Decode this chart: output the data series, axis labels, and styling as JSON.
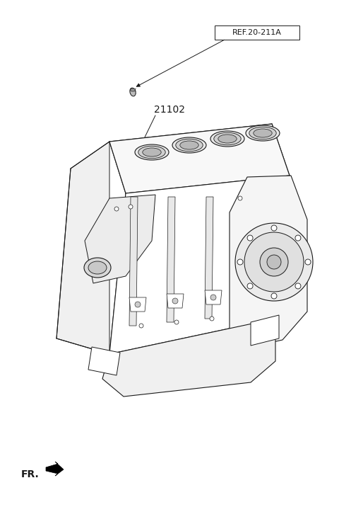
{
  "background_color": "#ffffff",
  "line_color": "#1a1a1a",
  "label_ref": "REF.20-211A",
  "label_part": "21102",
  "label_fr": "FR.",
  "figsize": [
    4.8,
    7.16
  ],
  "dpi": 100
}
